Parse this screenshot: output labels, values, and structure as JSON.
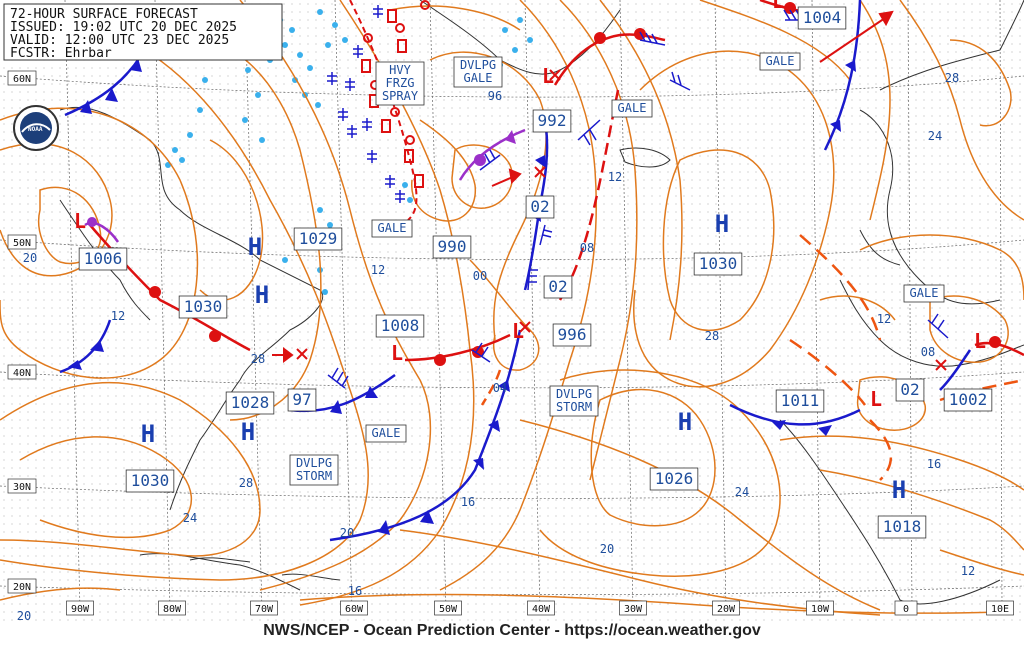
{
  "header": {
    "title": "72-HOUR SURFACE FORECAST",
    "issued": "ISSUED: 19:02 UTC 20 DEC 2025",
    "valid": "VALID:  12:00 UTC 23 DEC 2025",
    "forecaster": "FCSTR:  Ehrbar"
  },
  "footer": "NWS/NCEP - Ocean Prediction Center - https://ocean.weather.gov",
  "logo": "NOAA",
  "lat_labels": [
    "60N",
    "50N",
    "40N",
    "30N",
    "20N"
  ],
  "lon_labels": [
    "90W",
    "80W",
    "70W",
    "60W",
    "50W",
    "40W",
    "30W",
    "20W",
    "10W",
    "0",
    "10E"
  ],
  "highs": [
    {
      "symbol": "H",
      "pressure": "1029"
    },
    {
      "symbol": "H",
      "pressure": "1030"
    },
    {
      "symbol": "H",
      "pressure": "1030"
    },
    {
      "symbol": "H",
      "pressure": "1030"
    },
    {
      "symbol": "H",
      "pressure": "1028"
    },
    {
      "symbol": "H",
      "pressure": "1026"
    },
    {
      "symbol": "H",
      "pressure": "1018"
    }
  ],
  "lows": [
    {
      "symbol": "L",
      "pressure": "1006"
    },
    {
      "symbol": "L",
      "pressure": "1008"
    },
    {
      "symbol": "L",
      "pressure": "992"
    },
    {
      "symbol": "L",
      "pressure": "996"
    },
    {
      "symbol": "L",
      "pressure": "1011"
    },
    {
      "symbol": "L",
      "pressure": "1002"
    },
    {
      "symbol": "L",
      "pressure": "1004"
    }
  ],
  "loose_pressures": [
    "990",
    "97",
    "02",
    "02",
    "02"
  ],
  "isobar_labels": [
    "20",
    "12",
    "28",
    "12",
    "00",
    "96",
    "12",
    "08",
    "04",
    "16",
    "28",
    "28",
    "24",
    "24",
    "20",
    "20",
    "16",
    "24",
    "20",
    "28",
    "12",
    "08",
    "16",
    "12",
    "24"
  ],
  "warnings": [
    {
      "text": [
        "HVY",
        "FRZG",
        "SPRAY"
      ]
    },
    {
      "text": [
        "DVLPG",
        "GALE"
      ]
    },
    {
      "text": [
        "GALE"
      ]
    },
    {
      "text": [
        "GALE"
      ]
    },
    {
      "text": [
        "GALE"
      ]
    },
    {
      "text": [
        "GALE"
      ]
    },
    {
      "text": [
        "DVLPG",
        "STORM"
      ]
    },
    {
      "text": [
        "DVLPG",
        "STORM"
      ]
    },
    {
      "text": [
        "GALE"
      ]
    }
  ],
  "colors": {
    "isobar": "#e07a1e",
    "cold_front": "#1a1acc",
    "warm_front": "#dd1111",
    "occluded": "#9b30c9",
    "ice": "#3ab0ec",
    "grid": "#555555",
    "land": "#333333",
    "pressure_text": "#1f4e9c"
  }
}
